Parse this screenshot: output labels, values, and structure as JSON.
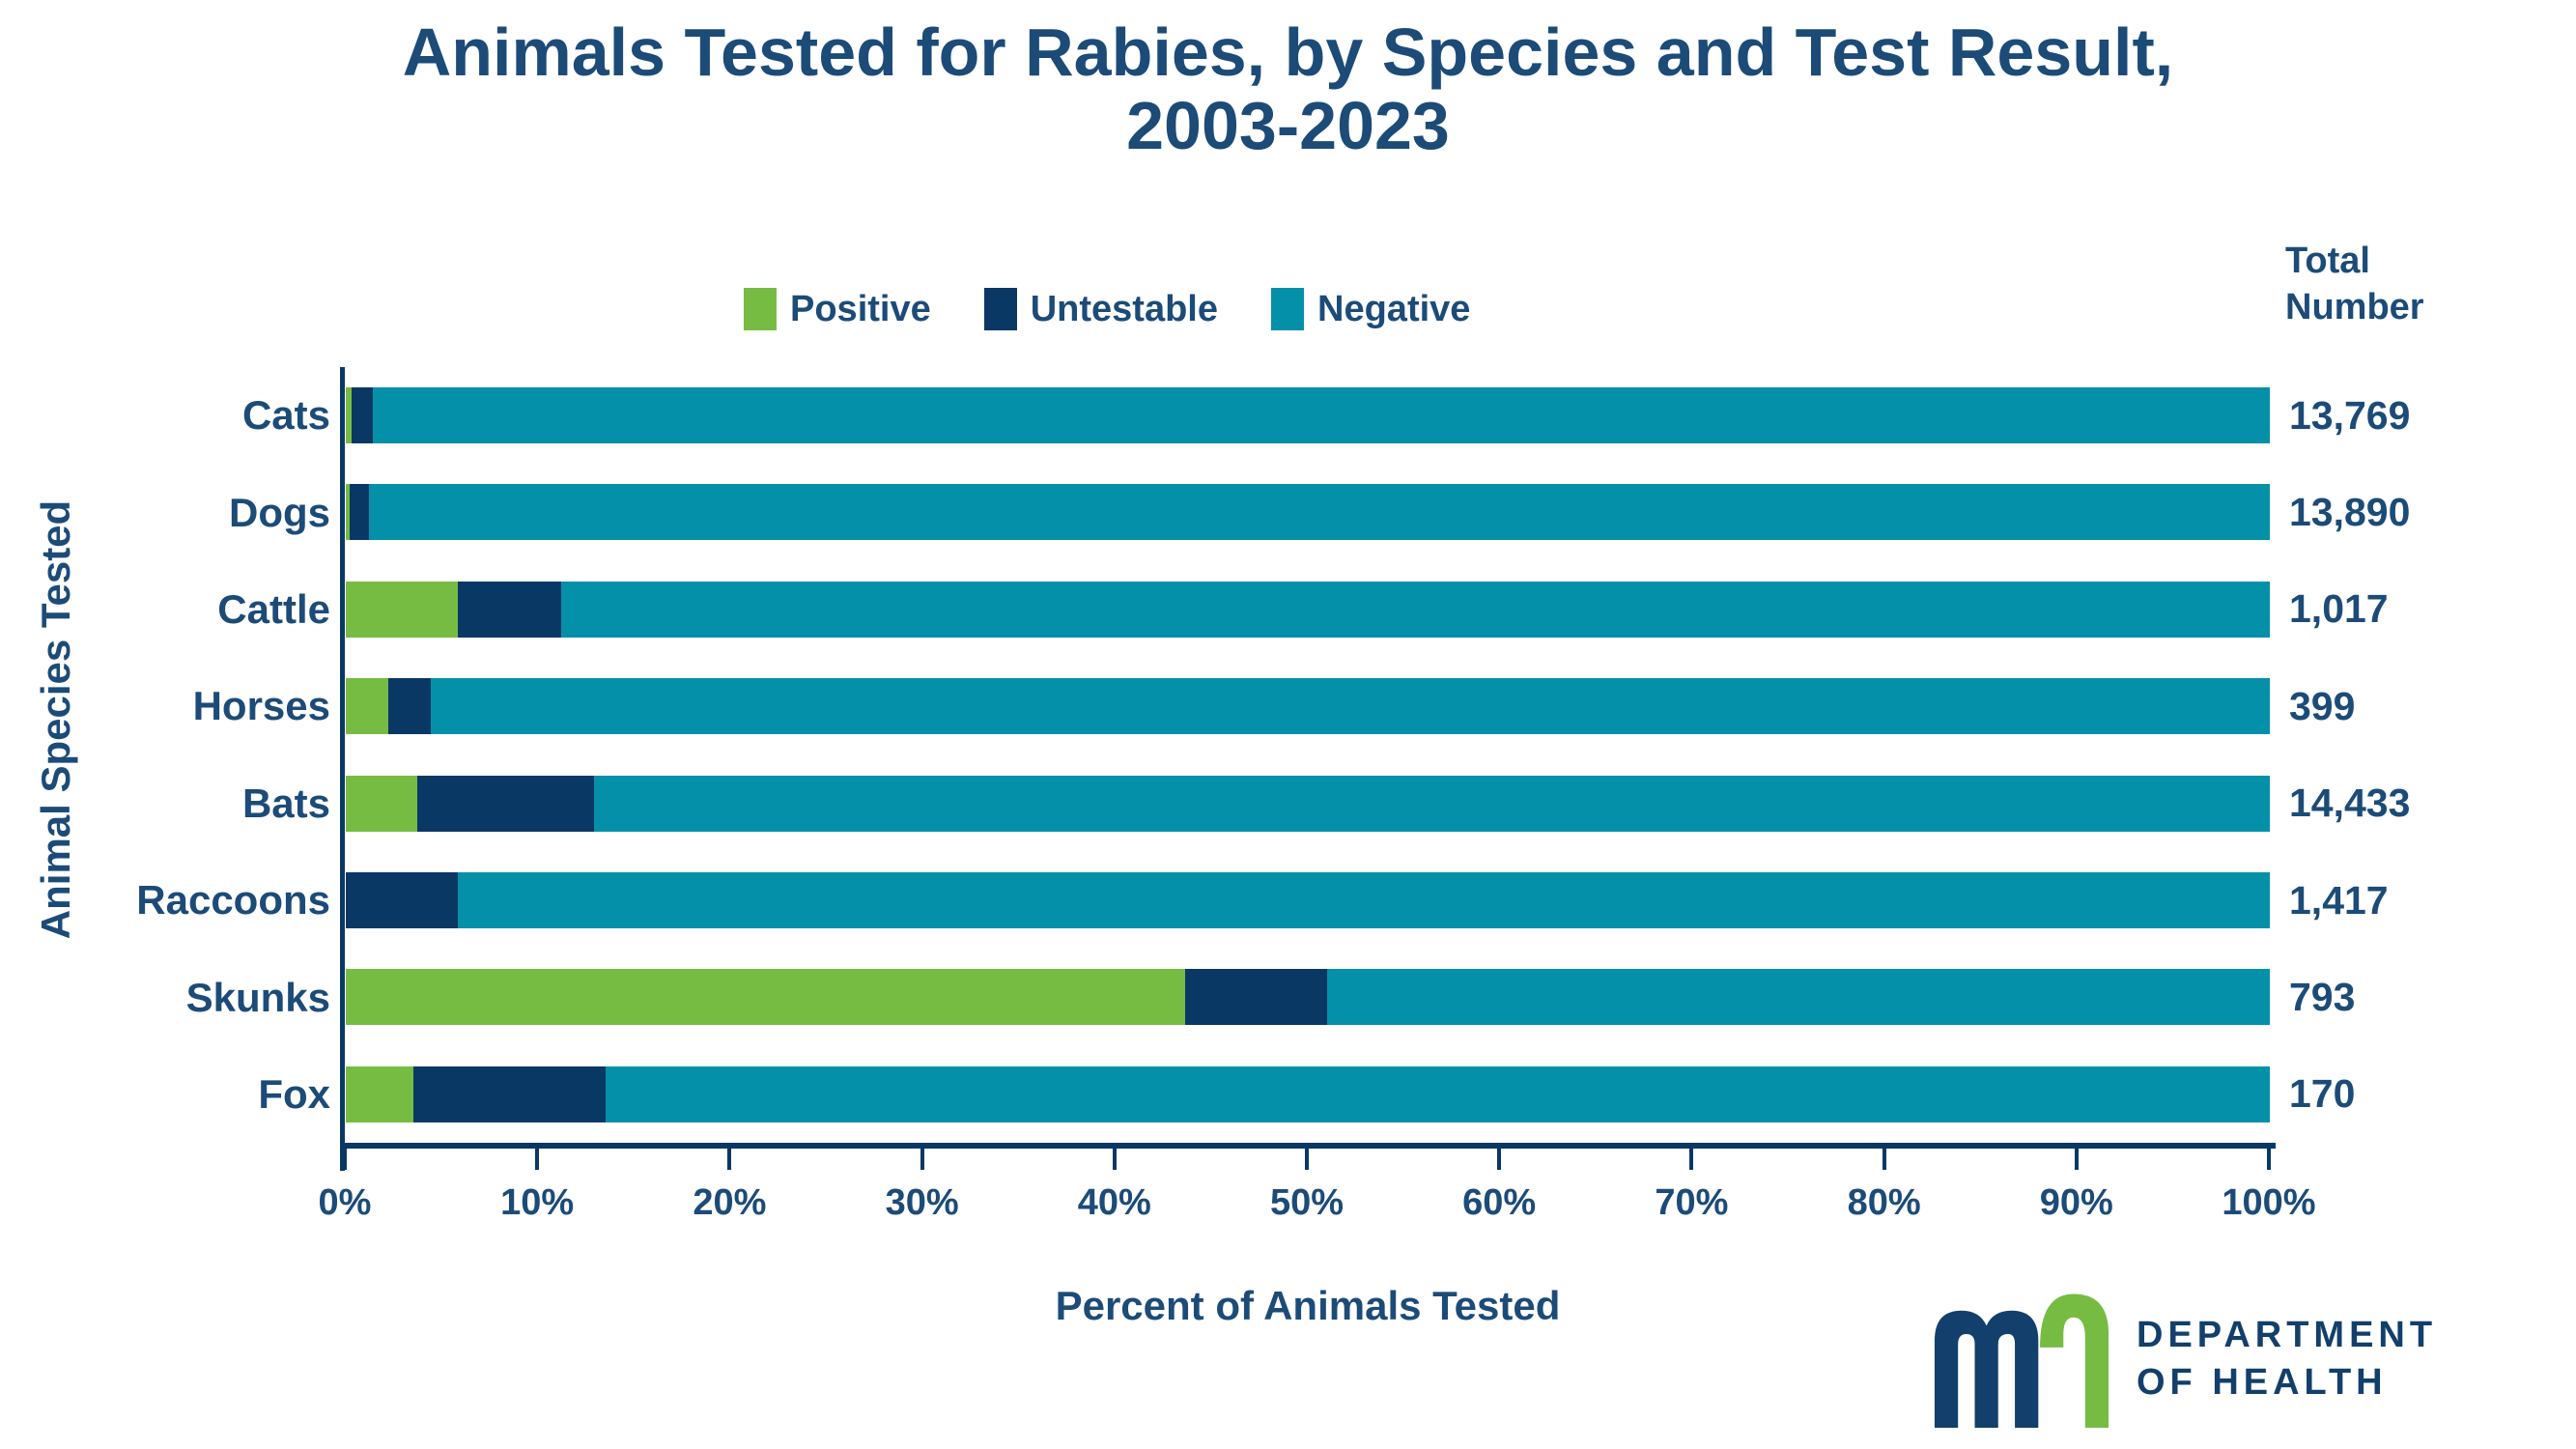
{
  "title": {
    "line1": "Animals Tested for Rabies, by Species and Test Result,",
    "line2": "2003-2023"
  },
  "totals_header": {
    "line1": "Total",
    "line2": "Number"
  },
  "axes": {
    "x_label": "Percent of Animals Tested",
    "y_label": "Animal Species Tested",
    "x_ticks": [
      "0%",
      "10%",
      "20%",
      "30%",
      "40%",
      "50%",
      "60%",
      "70%",
      "80%",
      "90%",
      "100%"
    ]
  },
  "colors": {
    "positive_green": "#76BC43",
    "untestable_navy": "#0A3865",
    "negative_teal": "#0590A9",
    "text_navy": "#1C4B78",
    "axis_navy": "#0A3865"
  },
  "chart_data": {
    "type": "bar",
    "orientation": "horizontal",
    "stacked": true,
    "title": "Animals Tested for Rabies, by Species and Test Result, 2003-2023",
    "xlabel": "Percent of Animals Tested",
    "ylabel": "Animal Species Tested",
    "xlim": [
      0,
      100
    ],
    "x_tick_format": "percent",
    "grid": false,
    "legend_position": "top",
    "categories": [
      "Cats",
      "Dogs",
      "Cattle",
      "Horses",
      "Bats",
      "Raccoons",
      "Skunks",
      "Fox"
    ],
    "series": [
      {
        "name": "Positive",
        "color": "#76BC43",
        "values": [
          0.3,
          0.2,
          5.8,
          2.2,
          3.7,
          0,
          43.6,
          3.5
        ]
      },
      {
        "name": "Untestable",
        "color": "#0A3865",
        "values": [
          1.1,
          1.0,
          5.4,
          2.2,
          9.2,
          5.8,
          7.4,
          10.0
        ]
      },
      {
        "name": "Negative",
        "color": "#0590A9",
        "values": [
          98.6,
          98.8,
          88.8,
          95.6,
          87.1,
          94.2,
          49.0,
          86.5
        ]
      }
    ],
    "totals": [
      13769,
      13890,
      1017,
      399,
      14433,
      1417,
      793,
      170
    ],
    "totals_display": [
      "13,769",
      "13,890",
      "1,017",
      "399",
      "14,433",
      "1,417",
      "793",
      "170"
    ],
    "totals_column_header": "Total Number"
  },
  "logo": {
    "glyph": "mn-state-logo",
    "wordmark_line1": "DEPARTMENT",
    "wordmark_line2": "OF HEALTH"
  }
}
